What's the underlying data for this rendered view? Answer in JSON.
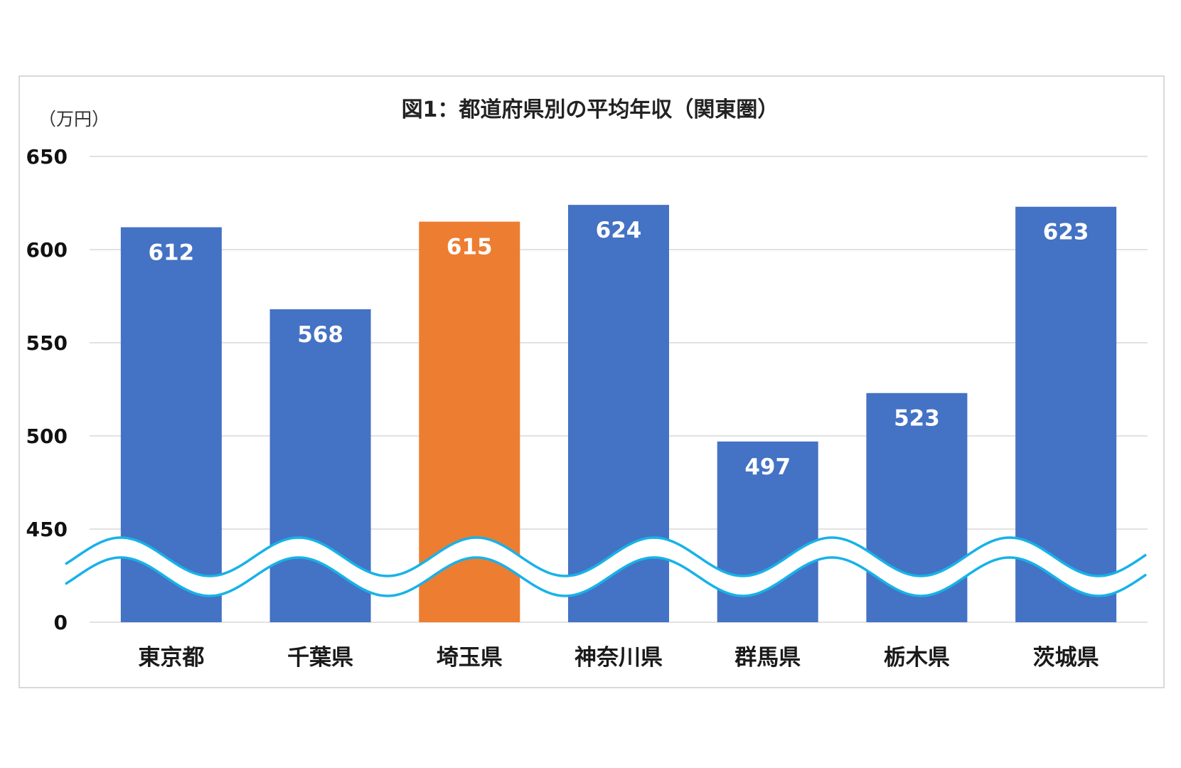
{
  "chart_data": {
    "type": "bar",
    "title": "図1：都道府県別の平均年収（関東圏）",
    "unit_label": "（万円）",
    "categories": [
      "東京都",
      "千葉県",
      "埼玉県",
      "神奈川県",
      "群馬県",
      "栃木県",
      "茨城県"
    ],
    "values": [
      612,
      568,
      615,
      624,
      497,
      523,
      623
    ],
    "data_labels": [
      "612",
      "568",
      "615",
      "624",
      "497",
      "523",
      "623"
    ],
    "highlight_index": 2,
    "yticks": [
      0,
      450,
      500,
      550,
      600,
      650
    ],
    "ylim": [
      0,
      650
    ],
    "axis_break": "wave between 0 and 450",
    "grid": true,
    "colors": {
      "bar": "#4472c4",
      "highlight": "#ed7d31",
      "wave": "#17b2e8",
      "grid": "#d9d9d9"
    }
  }
}
